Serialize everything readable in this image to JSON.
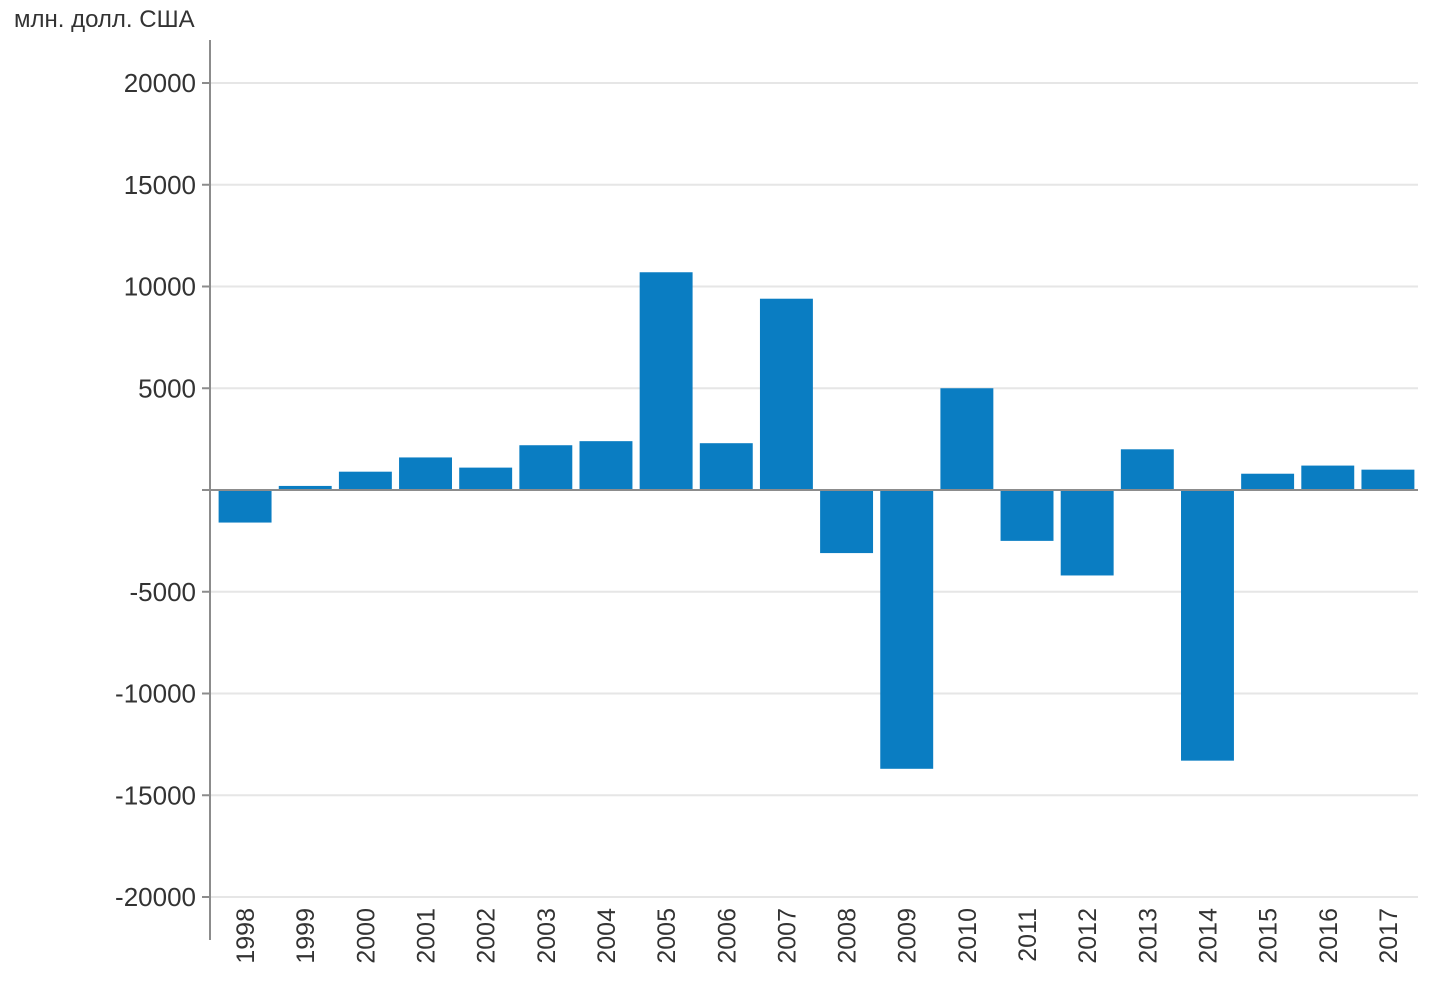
{
  "chart_data": {
    "type": "bar",
    "unit_label": "млн. долл. США",
    "categories": [
      "1998",
      "1999",
      "2000",
      "2001",
      "2002",
      "2003",
      "2004",
      "2005",
      "2006",
      "2007",
      "2008",
      "2009",
      "2010",
      "2011",
      "2012",
      "2013",
      "2014",
      "2015",
      "2016",
      "2017"
    ],
    "values": [
      -1600,
      200,
      900,
      1600,
      1100,
      2200,
      2400,
      10700,
      2300,
      9400,
      -3100,
      -13700,
      5000,
      -2500,
      -4200,
      2000,
      -13300,
      800,
      1200,
      1000
    ],
    "ylim": [
      -20000,
      20000
    ],
    "yticks": [
      20000,
      15000,
      10000,
      5000,
      0,
      -5000,
      -10000,
      -15000,
      -20000
    ],
    "ytick_labels": [
      "20000",
      "15000",
      "10000",
      "5000",
      "",
      "-5000",
      "-10000",
      "-15000",
      "-20000"
    ],
    "grid": true,
    "legend": "none",
    "colors": {
      "bar": "#0a7dc2",
      "grid": "#e6e6e6",
      "axis": "#8c8c8c",
      "text": "#333333"
    }
  }
}
